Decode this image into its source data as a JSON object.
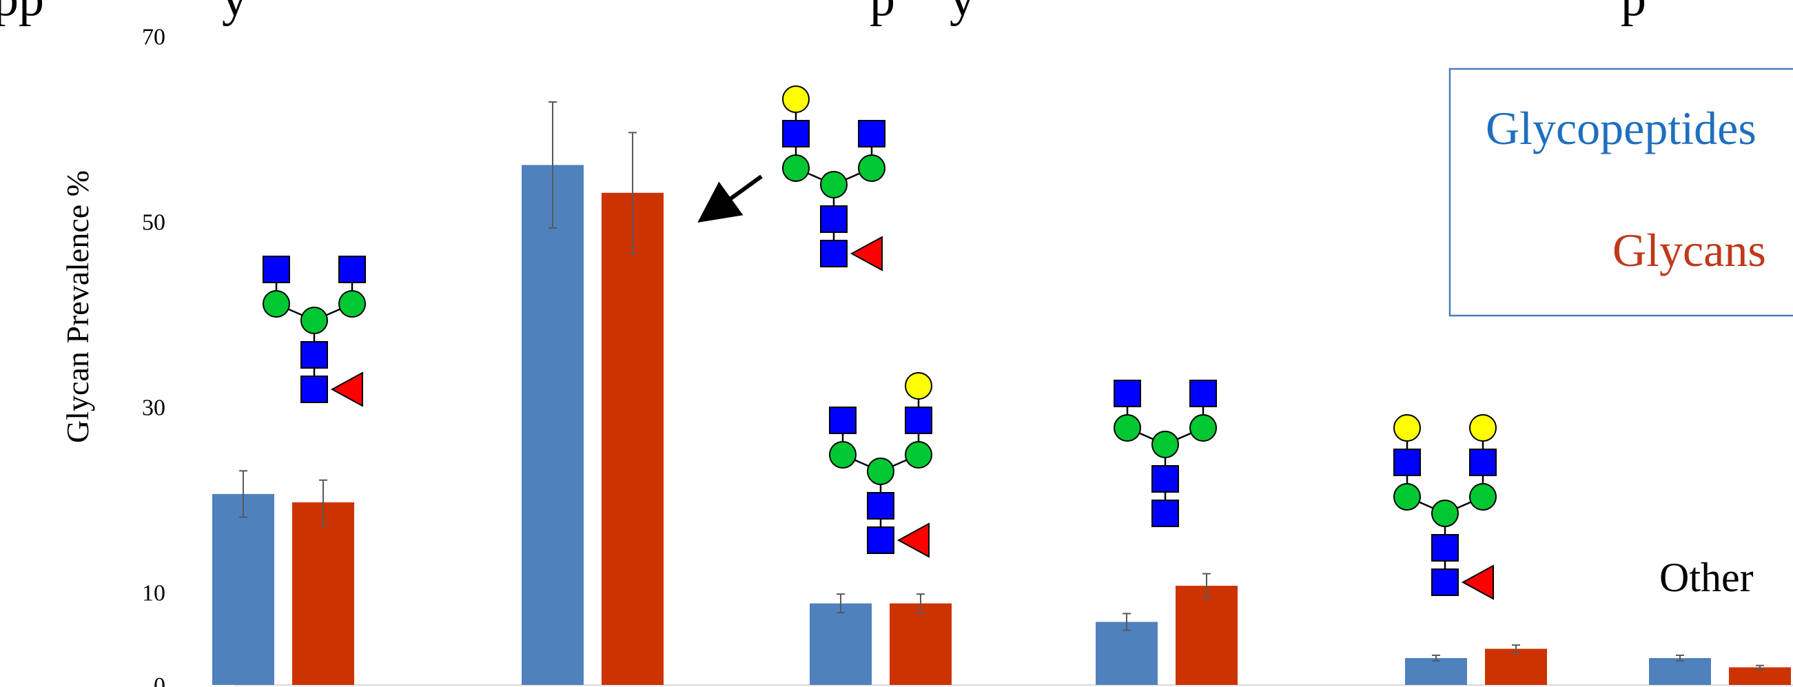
{
  "chart_data": {
    "type": "bar",
    "title": "",
    "ylabel": "Glycan Prevalence %",
    "xlabel": "",
    "ylim": [
      0,
      70
    ],
    "yticks": [
      0,
      10,
      30,
      50,
      70
    ],
    "grid": false,
    "legend_position": "top-right",
    "categories": [
      "",
      "",
      "",
      "",
      "",
      "Other"
    ],
    "series": [
      {
        "name": "Glycopeptides",
        "color": "#4f81bd",
        "values": [
          20.6,
          56.1,
          8.8,
          6.8,
          2.9,
          2.9
        ],
        "errors": [
          2.5,
          6.8,
          1.0,
          0.9,
          0.3,
          0.3
        ]
      },
      {
        "name": "Glycans",
        "color": "#cc3300",
        "values": [
          19.7,
          53.1,
          8.8,
          10.7,
          3.9,
          1.9
        ],
        "errors": [
          2.4,
          6.5,
          1.0,
          1.3,
          0.4,
          0.2
        ]
      }
    ],
    "annotations": [
      {
        "text": "Other",
        "category_index": 5
      }
    ],
    "glycan_icons": [
      "core-fucosylated-biantennary-agalacto-glycan",
      "core-fucosylated-biantennary-monogalacto-glycan",
      "core-fucosylated-biantennary-monogalacto-glycan",
      "biantennary-agalacto-glycan",
      "core-fucosylated-biantennary-digalacto-glycan"
    ],
    "symbol_colors": {
      "glcnac": "#0000ff",
      "mannose": "#00c832",
      "galactose": "#ffff00",
      "fucose": "#ff0000"
    }
  }
}
